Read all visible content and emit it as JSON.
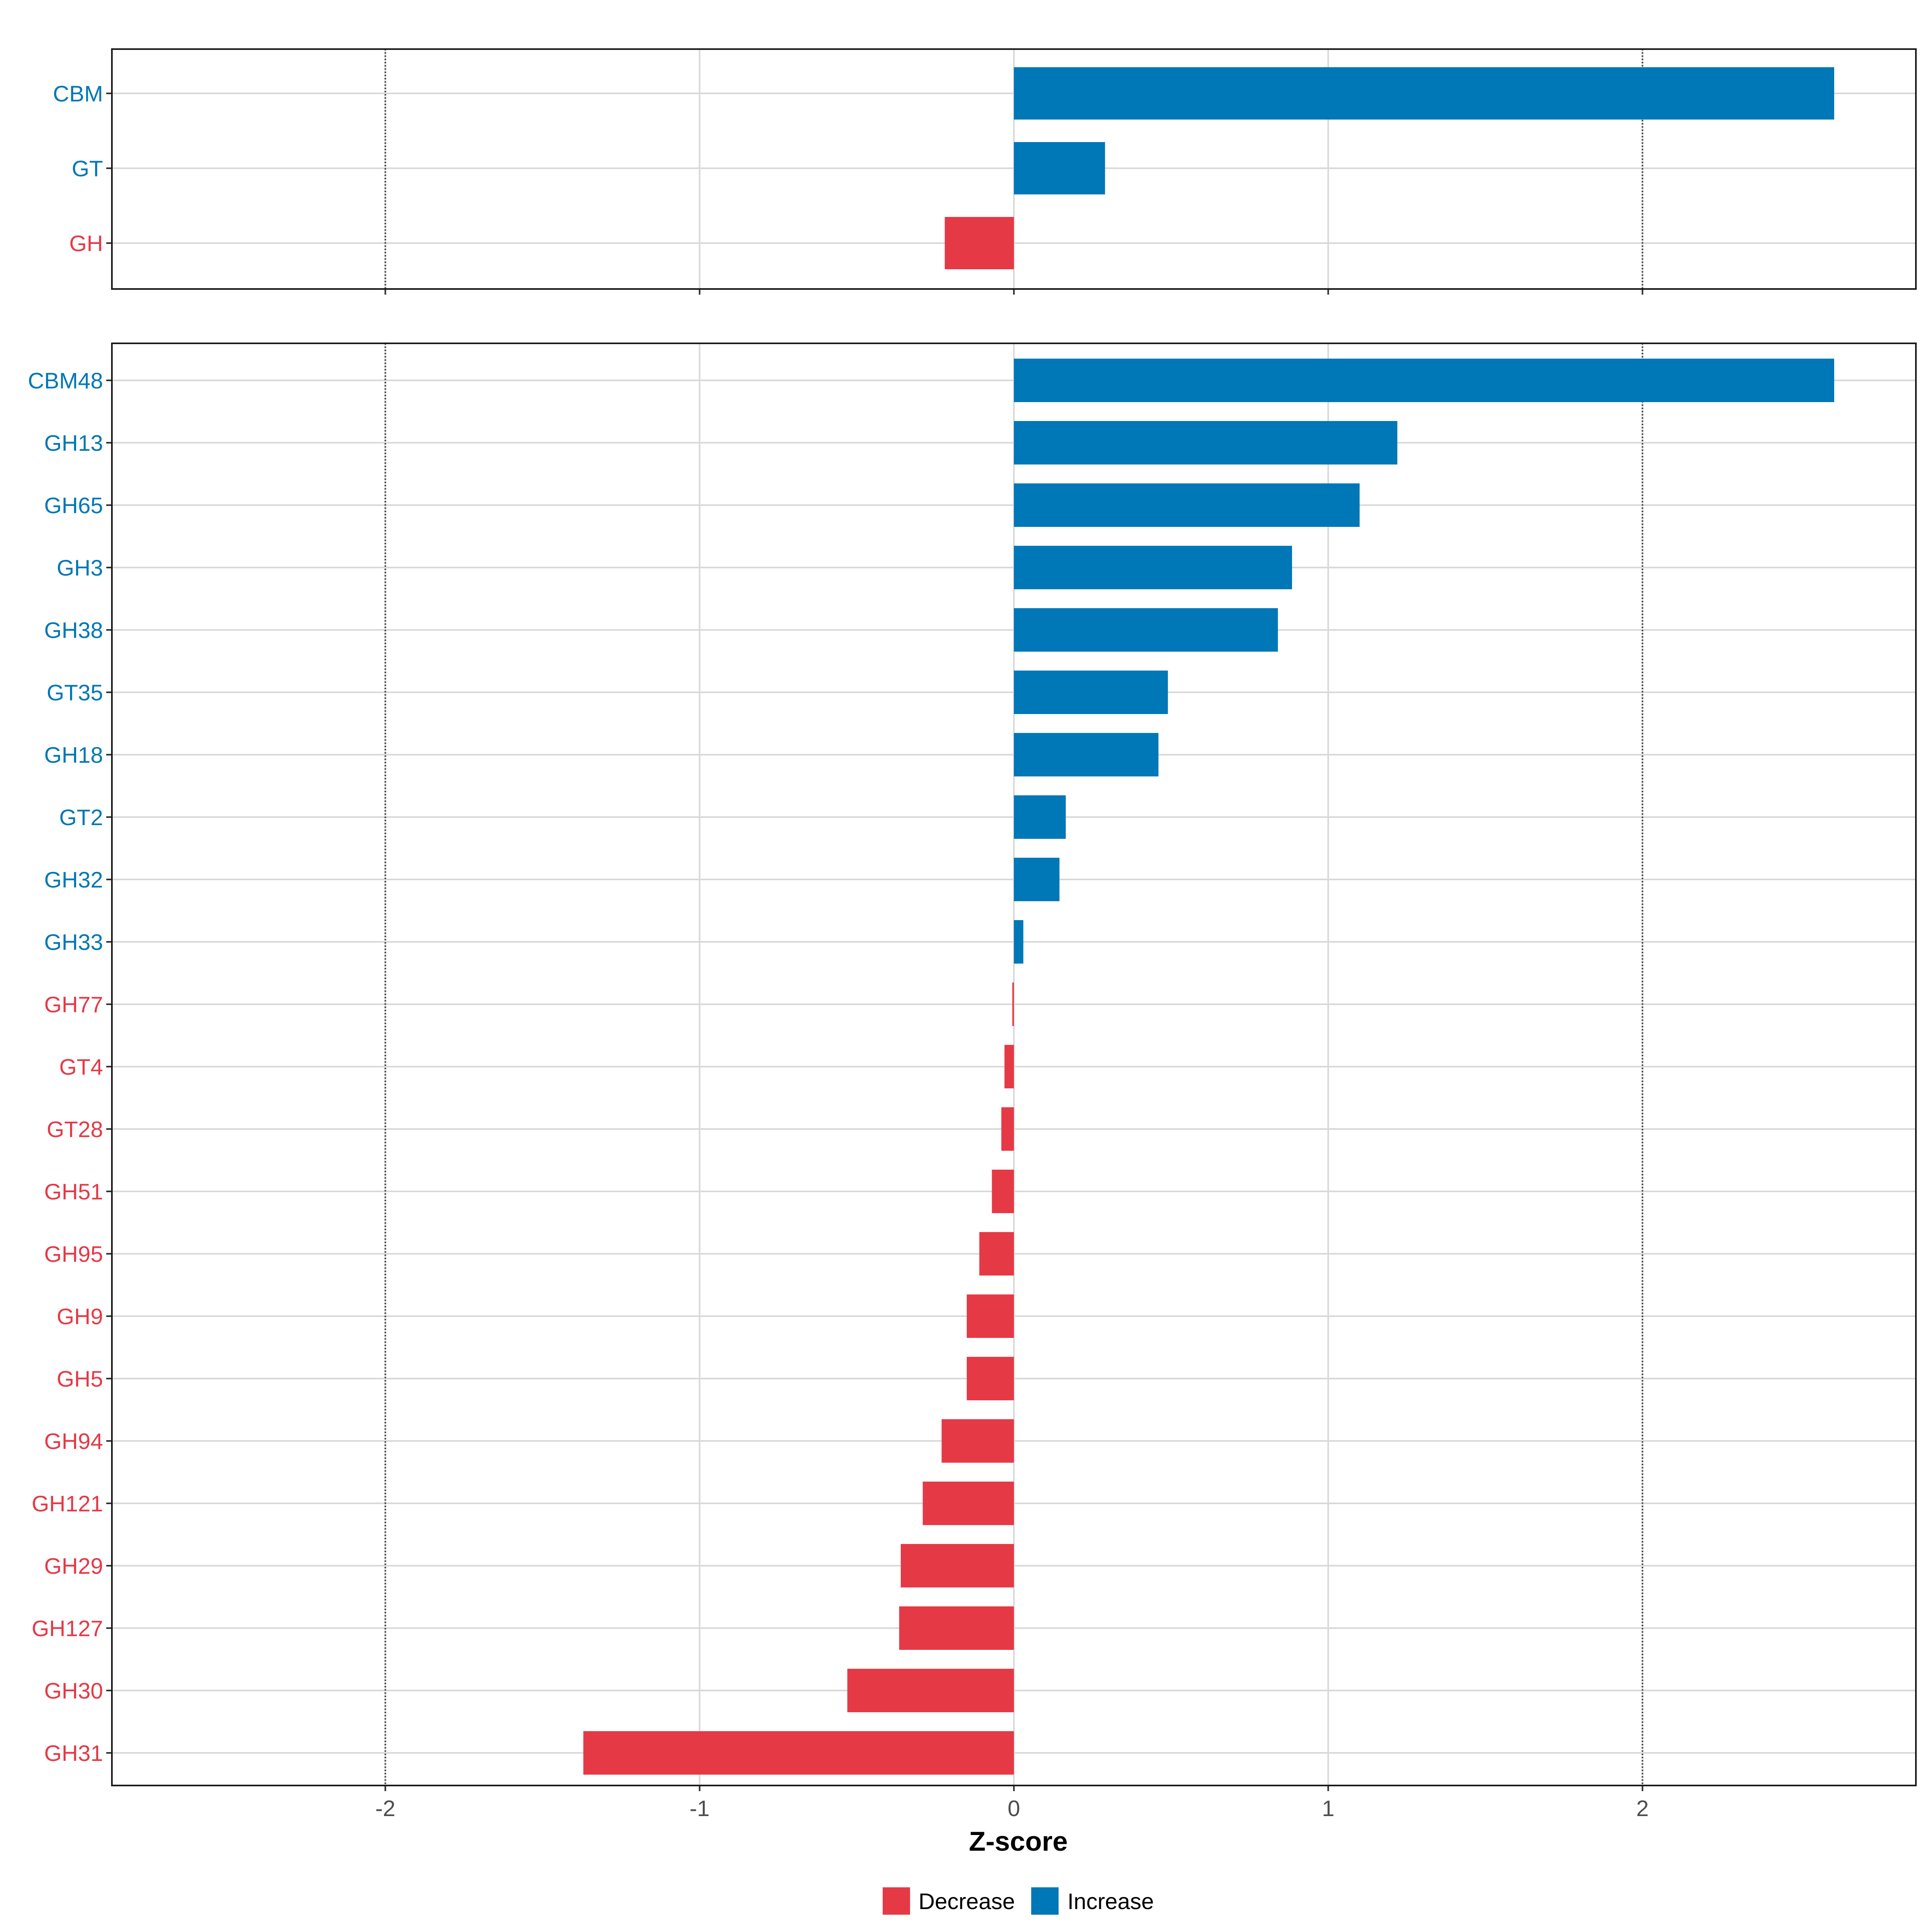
{
  "chart_data": {
    "type": "bar",
    "orientation": "horizontal",
    "xlabel": "Z-score",
    "xlim": [
      -2.87,
      2.87
    ],
    "x_ticks": [
      -2,
      -1,
      0,
      1,
      2
    ],
    "x_tick_labels": [
      "-2",
      "-1",
      "0",
      "1",
      "2"
    ],
    "reference_lines": [
      -2,
      2
    ],
    "grid": true,
    "colors": {
      "Decrease": "#E63946",
      "Increase": "#0077B6"
    },
    "legend": {
      "position": "bottom",
      "entries": [
        {
          "label": "Decrease",
          "color": "#E63946"
        },
        {
          "label": "Increase",
          "color": "#0077B6"
        }
      ]
    },
    "panels": [
      {
        "name": "class",
        "categories": [
          "CBM",
          "GT",
          "GH"
        ],
        "values": [
          2.61,
          0.29,
          -0.22
        ]
      },
      {
        "name": "family",
        "categories": [
          "CBM48",
          "GH13",
          "GH65",
          "GH3",
          "GH38",
          "GT35",
          "GH18",
          "GT2",
          "GH32",
          "GH33",
          "GH77",
          "GT4",
          "GT28",
          "GH51",
          "GH95",
          "GH9",
          "GH5",
          "GH94",
          "GH121",
          "GH29",
          "GH127",
          "GH30",
          "GH31"
        ],
        "values": [
          2.61,
          1.22,
          1.1,
          0.885,
          0.84,
          0.49,
          0.46,
          0.165,
          0.145,
          0.03,
          -0.005,
          -0.03,
          -0.04,
          -0.07,
          -0.11,
          -0.15,
          -0.15,
          -0.23,
          -0.29,
          -0.36,
          -0.365,
          -0.53,
          -1.37
        ]
      }
    ]
  }
}
